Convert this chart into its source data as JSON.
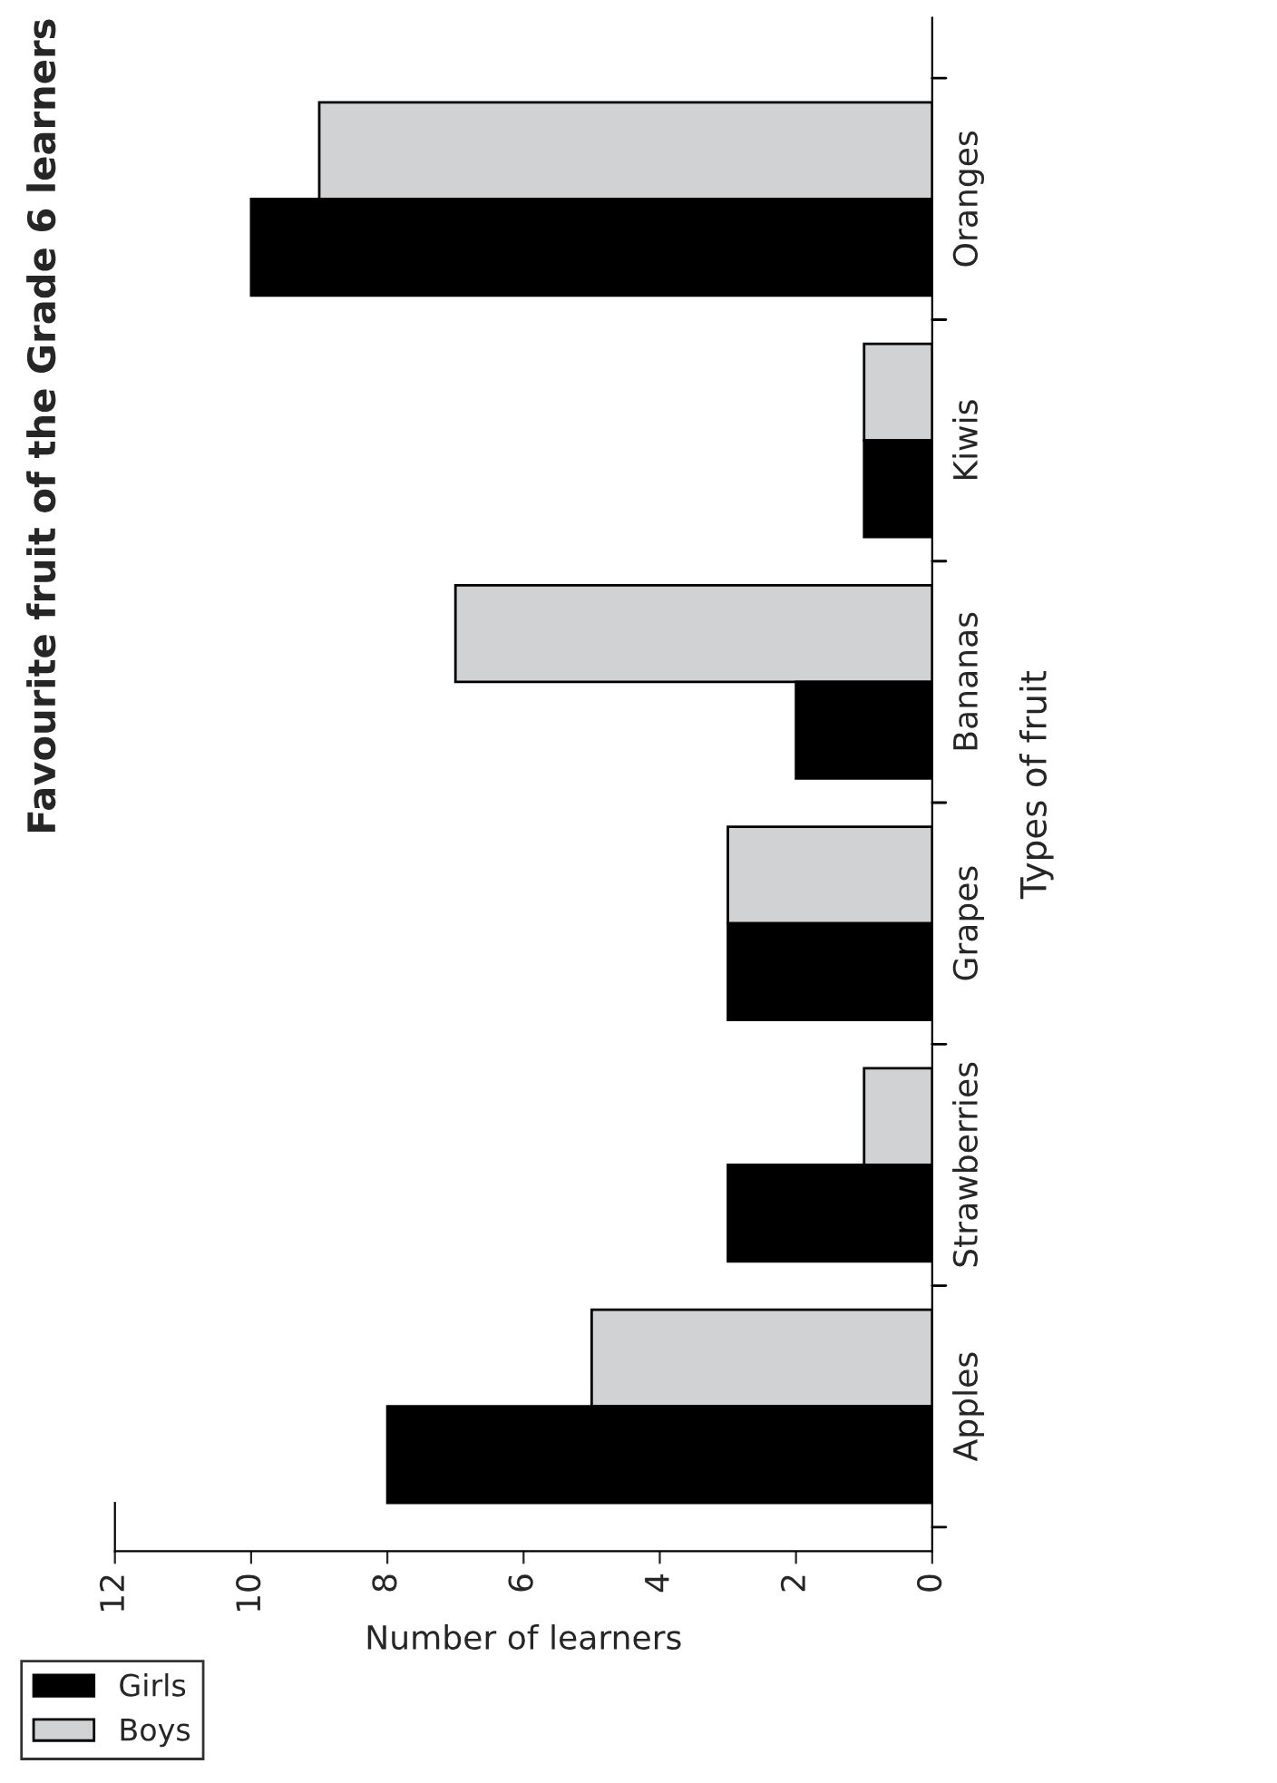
{
  "chart_data": {
    "type": "bar",
    "orientation": "horizontal",
    "title": "Favourite fruit of the Grade 6 learners",
    "xlabel": "Number of learners",
    "ylabel": "Types of fruit",
    "categories": [
      "Oranges",
      "Kiwis",
      "Bananas",
      "Grapes",
      "Strawberries",
      "Apples"
    ],
    "series": [
      {
        "name": "Boys",
        "color": "#d0d2d3",
        "values": [
          9,
          1,
          7,
          3,
          1,
          5
        ]
      },
      {
        "name": "Girls",
        "color": "#000000",
        "values": [
          10,
          1,
          2,
          3,
          3,
          8
        ]
      }
    ],
    "xlim": [
      12,
      0
    ],
    "xticks": [
      0,
      2,
      4,
      6,
      8,
      10,
      12
    ],
    "grid": false,
    "legend": "bottom left"
  }
}
